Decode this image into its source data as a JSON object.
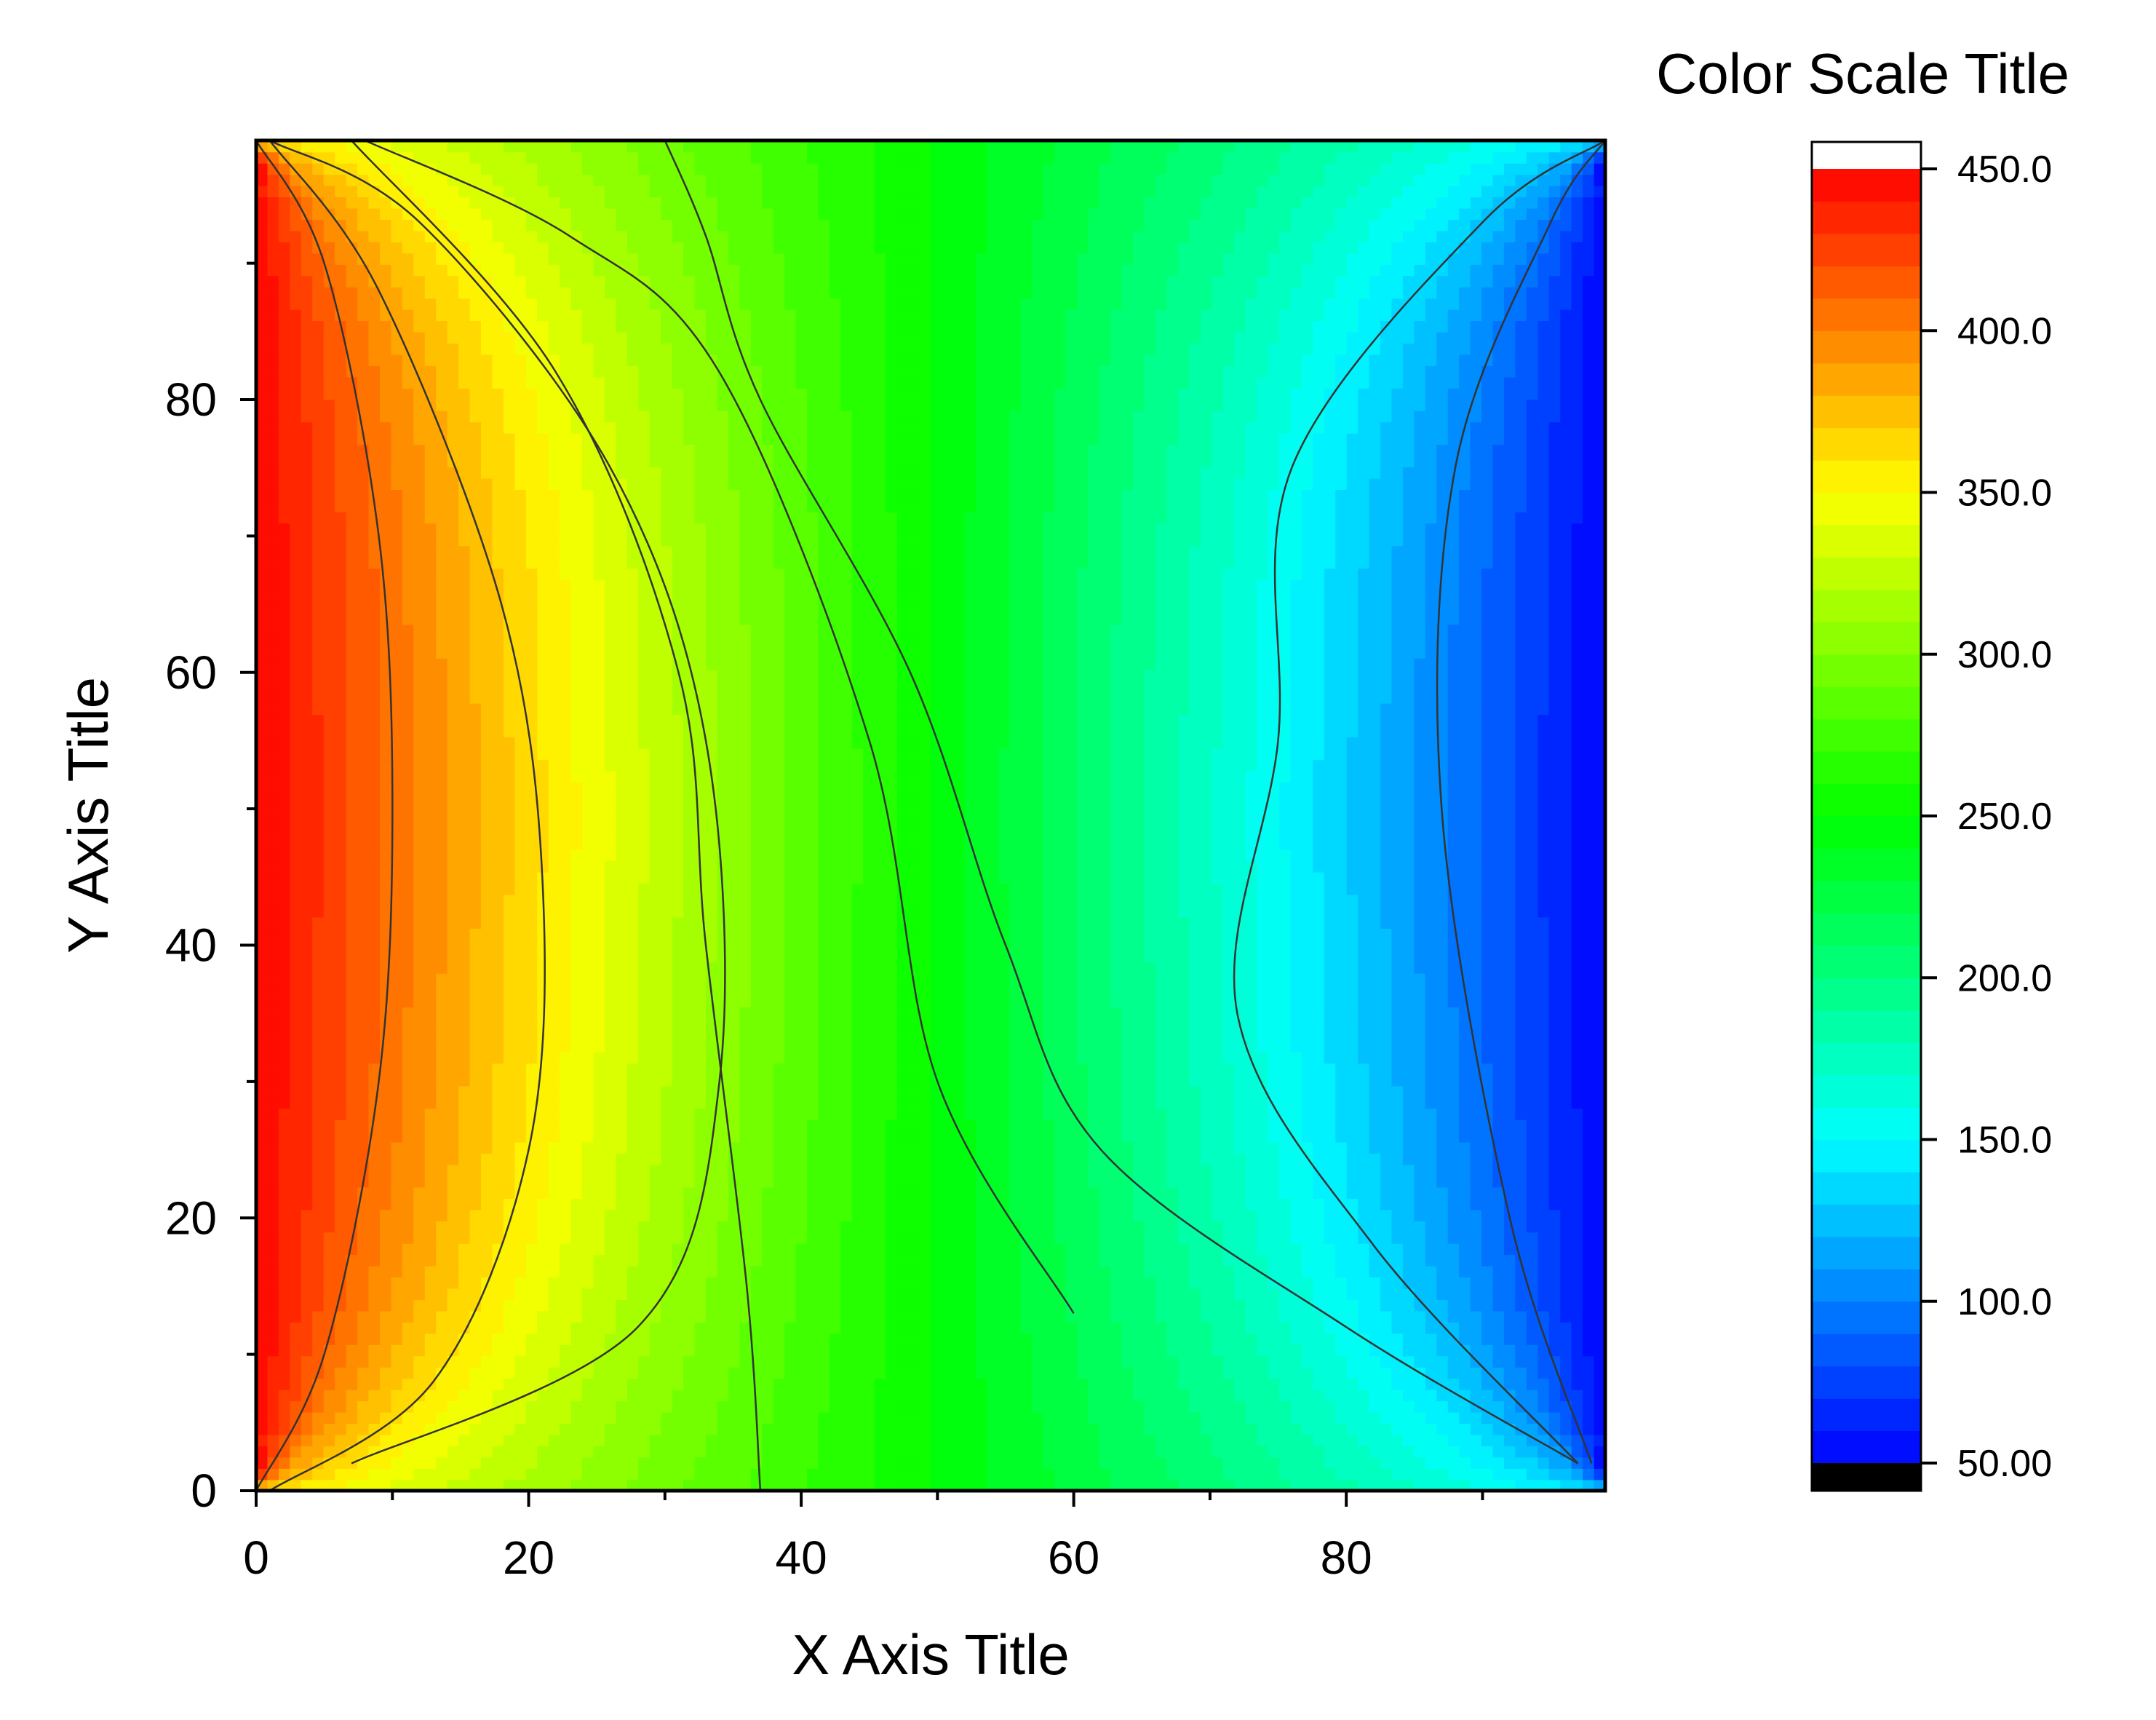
{
  "chart_data": {
    "type": "heatmap",
    "subtype": "filled-contour",
    "title": "",
    "xlabel": "X Axis Title",
    "ylabel": "Y Axis Title",
    "xlim": [
      0,
      99
    ],
    "ylim": [
      0,
      99
    ],
    "x_ticks": [
      0,
      20,
      40,
      60,
      80
    ],
    "y_ticks": [
      0,
      20,
      40,
      60,
      80
    ],
    "x_tick_labels": [
      "0",
      "20",
      "40",
      "60",
      "80"
    ],
    "y_tick_labels": [
      "0",
      "20",
      "40",
      "60",
      "80"
    ],
    "grid": false,
    "colormap": "rainbow",
    "colormap_stops": [
      "#0000ff",
      "#0080ff",
      "#00ffff",
      "#00ff80",
      "#00ff00",
      "#80ff00",
      "#ffff00",
      "#ff8000",
      "#ff0000"
    ],
    "z_range": [
      50,
      450
    ],
    "contour_step": 50,
    "contour_line_color": "#333333",
    "boundary": {
      "left_edge": 450,
      "right_edge": 50,
      "top_edge_model": "linear 450→50",
      "bottom_edge_model": "linear 450→50"
    },
    "contour_lines": [
      {
        "level": 400,
        "points": [
          [
            0,
            0
          ],
          [
            5,
            10
          ],
          [
            9,
            30
          ],
          [
            10,
            50
          ],
          [
            9,
            70
          ],
          [
            5,
            90
          ],
          [
            0,
            99
          ]
        ]
      },
      {
        "level": 350,
        "points": [
          [
            1,
            0
          ],
          [
            13,
            8
          ],
          [
            20,
            25
          ],
          [
            21,
            45
          ],
          [
            18,
            65
          ],
          [
            9,
            88
          ],
          [
            1,
            99
          ]
        ]
      },
      {
        "level": 300,
        "points": [
          [
            7,
            2
          ],
          [
            28,
            12
          ],
          [
            34,
            30
          ],
          [
            33,
            55
          ],
          [
            26,
            75
          ],
          [
            12,
            93
          ],
          [
            1,
            99
          ]
        ]
      },
      {
        "level": 250,
        "points": [
          [
            37,
            0
          ],
          [
            36,
            15
          ],
          [
            33,
            40
          ],
          [
            31,
            60
          ],
          [
            22,
            82
          ],
          [
            7,
            99
          ]
        ]
      },
      {
        "level": 200,
        "points": [
          [
            60,
            13
          ],
          [
            50,
            30
          ],
          [
            45,
            55
          ],
          [
            34,
            82
          ],
          [
            23,
            92
          ],
          [
            8,
            99
          ]
        ]
      },
      {
        "level": 150,
        "points": [
          [
            97,
            2
          ],
          [
            80,
            12
          ],
          [
            62,
            25
          ],
          [
            55,
            40
          ],
          [
            48,
            60
          ],
          [
            37,
            80
          ],
          [
            33,
            92
          ],
          [
            30,
            99
          ]
        ]
      },
      {
        "level": 100,
        "points": [
          [
            97,
            2
          ],
          [
            82,
            18
          ],
          [
            72,
            35
          ],
          [
            75,
            55
          ],
          [
            76,
            75
          ],
          [
            90,
            93
          ],
          [
            99,
            99
          ]
        ]
      },
      {
        "level": 50,
        "points": [
          [
            98,
            2
          ],
          [
            92,
            20
          ],
          [
            87,
            50
          ],
          [
            88,
            75
          ],
          [
            95,
            93
          ],
          [
            99,
            99
          ]
        ]
      }
    ],
    "color_scale": {
      "title": "Color Scale Title",
      "min": 50,
      "max": 450,
      "ticks": [
        50,
        100,
        150,
        200,
        250,
        300,
        350,
        400,
        450
      ],
      "tick_labels": [
        "50.00",
        "100.0",
        "150.0",
        "200.0",
        "250.0",
        "300.0",
        "350.0",
        "400.0",
        "450.0"
      ],
      "levels_per_major": 5,
      "below_color": "#000000",
      "above_color": "#ffffff"
    }
  }
}
